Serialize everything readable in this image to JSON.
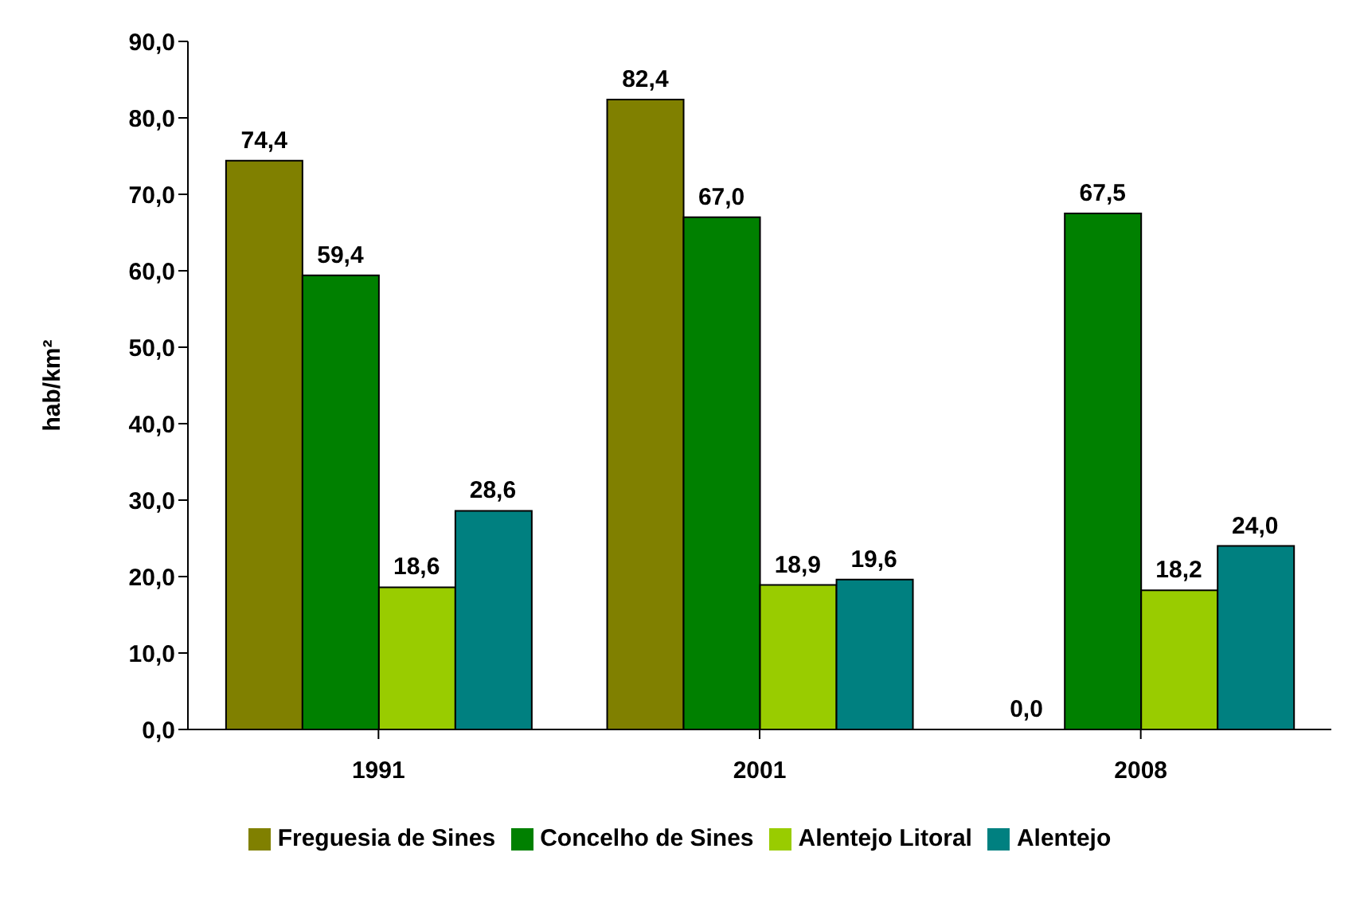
{
  "chart_data": {
    "type": "bar",
    "ylabel": "hab/km²",
    "categories": [
      "1991",
      "2001",
      "2008"
    ],
    "series": [
      {
        "name": "Freguesia de Sines",
        "color": "#808000",
        "values": [
          74.4,
          82.4,
          0
        ],
        "value_labels": [
          "74,4",
          "82,4",
          "0,0"
        ]
      },
      {
        "name": "Concelho de Sines",
        "color": "#008000",
        "values": [
          59.4,
          67.0,
          67.5
        ],
        "value_labels": [
          "59,4",
          "67,0",
          "67,5"
        ]
      },
      {
        "name": "Alentejo Litoral",
        "color": "#99cc00",
        "values": [
          18.6,
          18.9,
          18.2
        ],
        "value_labels": [
          "18,6",
          "18,9",
          "18,2"
        ]
      },
      {
        "name": "Alentejo",
        "color": "#008080",
        "values": [
          28.6,
          19.6,
          24.0
        ],
        "value_labels": [
          "28,6",
          "19,6",
          "24,0"
        ]
      }
    ],
    "ylim": [
      0,
      90
    ],
    "yticks": [
      {
        "value": 0,
        "label": "0,0"
      },
      {
        "value": 10,
        "label": "10,0"
      },
      {
        "value": 20,
        "label": "20,0"
      },
      {
        "value": 30,
        "label": "30,0"
      },
      {
        "value": 40,
        "label": "40,0"
      },
      {
        "value": 50,
        "label": "50,0"
      },
      {
        "value": 60,
        "label": "60,0"
      },
      {
        "value": 70,
        "label": "70,0"
      },
      {
        "value": 80,
        "label": "80,0"
      },
      {
        "value": 90,
        "label": "90,0"
      }
    ],
    "grid": false,
    "legend": "bottom"
  }
}
